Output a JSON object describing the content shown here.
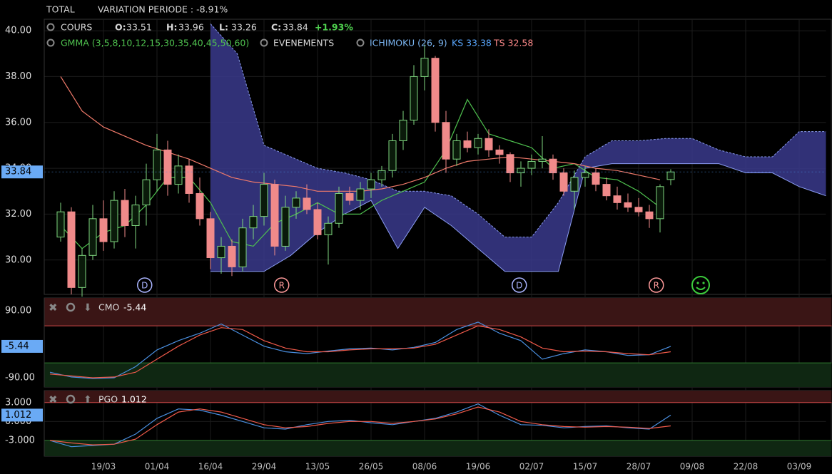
{
  "header": {
    "total": "TOTAL",
    "variation": "VARIATION PERIODE : -8.91%",
    "cours": "COURS",
    "o": "O:",
    "h": "H:",
    "l": "L:",
    "c": "C:",
    "change": "+1.93%",
    "gmma": "GMMA (3,5,8,10,12,15,30,35,40,45,50,60)",
    "evenements": "EVENEMENTS",
    "ichimoku": "ICHIMOKU (26, 9)",
    "ks": "KS 33.38",
    "ts": "TS 32.58"
  },
  "chart_data": [
    {
      "type": "candlestick",
      "up_color": "#7fd67f",
      "down_color": "#f08a8a",
      "xlim": [
        -1,
        145
      ],
      "ylim": [
        28.5,
        40.5
      ],
      "yticks": [
        {
          "value": 30,
          "label": "30.00"
        },
        {
          "value": 32,
          "label": "32.00"
        },
        {
          "value": 34,
          "label": "34.00"
        },
        {
          "value": 36,
          "label": "36.00"
        },
        {
          "value": 38,
          "label": "38.00"
        },
        {
          "value": 40,
          "label": "40.00"
        }
      ],
      "xticks": [
        {
          "value": 10,
          "label": "19/03"
        },
        {
          "value": 20,
          "label": "01/04"
        },
        {
          "value": 30,
          "label": "16/04"
        },
        {
          "value": 40,
          "label": "29/04"
        },
        {
          "value": 50,
          "label": "13/05"
        },
        {
          "value": 60,
          "label": "26/05"
        },
        {
          "value": 70,
          "label": "08/06"
        },
        {
          "value": 80,
          "label": "19/06"
        },
        {
          "value": 90,
          "label": "02/07"
        },
        {
          "value": 100,
          "label": "15/07"
        },
        {
          "value": 110,
          "label": "28/07"
        },
        {
          "value": 120,
          "label": "09/08"
        },
        {
          "value": 130,
          "label": "22/08"
        },
        {
          "value": 140,
          "label": "03/09"
        }
      ],
      "x": [
        2,
        4,
        6,
        8,
        10,
        12,
        14,
        16,
        18,
        20,
        22,
        24,
        26,
        28,
        30,
        32,
        34,
        36,
        38,
        40,
        42,
        44,
        46,
        48,
        50,
        52,
        54,
        56,
        58,
        60,
        62,
        64,
        66,
        68,
        70,
        72,
        74,
        76,
        78,
        80,
        82,
        84,
        86,
        88,
        90,
        92,
        94,
        96,
        98,
        100,
        102,
        104,
        106,
        108,
        110,
        112,
        114,
        116
      ],
      "open": [
        31.0,
        32.1,
        28.8,
        30.2,
        31.8,
        30.8,
        32.6,
        31.5,
        32.4,
        33.5,
        34.8,
        33.3,
        34.1,
        32.9,
        31.8,
        30.1,
        30.6,
        29.7,
        31.4,
        31.9,
        33.3,
        30.6,
        32.3,
        32.7,
        32.2,
        31.1,
        31.6,
        32.9,
        32.6,
        33.1,
        33.5,
        33.9,
        35.2,
        36.1,
        38.0,
        38.8,
        36.0,
        34.4,
        35.2,
        34.9,
        35.3,
        34.8,
        34.6,
        33.8,
        34.0,
        34.3,
        34.4,
        33.8,
        33.0,
        33.6,
        33.8,
        33.3,
        32.8,
        32.5,
        32.3,
        32.1,
        31.8,
        33.51
      ],
      "high": [
        32.5,
        32.3,
        30.5,
        32.4,
        32.6,
        33.0,
        33.1,
        32.8,
        34.2,
        35.5,
        35.2,
        34.6,
        34.4,
        33.6,
        32.1,
        31.0,
        30.9,
        31.8,
        32.4,
        33.8,
        33.5,
        32.8,
        33.0,
        33.3,
        32.5,
        31.9,
        33.2,
        33.2,
        33.4,
        33.8,
        34.1,
        35.5,
        36.5,
        38.5,
        39.4,
        38.9,
        36.5,
        35.5,
        35.6,
        35.5,
        35.7,
        35.0,
        34.7,
        34.3,
        34.6,
        35.4,
        34.6,
        34.0,
        33.9,
        34.1,
        34.0,
        33.6,
        33.2,
        32.9,
        32.7,
        32.4,
        33.3,
        33.96
      ],
      "low": [
        30.8,
        28.5,
        28.4,
        30.0,
        30.4,
        30.5,
        31.0,
        30.5,
        31.5,
        33.0,
        32.8,
        32.9,
        32.5,
        31.5,
        29.6,
        29.4,
        29.3,
        29.5,
        30.9,
        31.5,
        30.2,
        30.4,
        31.8,
        32.0,
        30.9,
        29.8,
        31.4,
        32.4,
        32.2,
        32.7,
        33.2,
        33.6,
        34.8,
        35.9,
        37.4,
        35.6,
        33.8,
        34.1,
        34.7,
        34.6,
        34.5,
        34.2,
        33.4,
        33.2,
        33.7,
        34.0,
        33.5,
        32.8,
        32.2,
        33.2,
        33.0,
        32.6,
        32.2,
        32.1,
        31.9,
        31.4,
        31.2,
        33.26
      ],
      "close": [
        32.1,
        28.8,
        30.2,
        31.8,
        30.8,
        32.6,
        31.5,
        32.4,
        33.5,
        34.8,
        33.3,
        34.1,
        32.9,
        31.8,
        30.1,
        30.6,
        29.7,
        31.4,
        31.9,
        33.3,
        30.6,
        32.3,
        32.7,
        32.2,
        31.1,
        31.6,
        32.9,
        32.6,
        33.1,
        33.5,
        33.9,
        35.2,
        36.1,
        38.0,
        38.8,
        36.0,
        34.4,
        35.2,
        34.9,
        35.3,
        34.8,
        34.6,
        33.8,
        34.0,
        34.3,
        34.4,
        33.8,
        33.0,
        33.6,
        33.8,
        33.3,
        32.8,
        32.5,
        32.3,
        32.1,
        31.8,
        33.2,
        33.84
      ],
      "cloud": {
        "color": "#3a3a8c",
        "edge": "#8a9cf0",
        "x": [
          30,
          35,
          40,
          45,
          50,
          55,
          60,
          65,
          70,
          75,
          80,
          85,
          90,
          95,
          100,
          105,
          110,
          115,
          120,
          125,
          130,
          135,
          140,
          145
        ],
        "span_a": [
          40.3,
          39.0,
          35.0,
          34.5,
          34.0,
          33.8,
          33.5,
          33.0,
          33.0,
          32.8,
          32.0,
          31.0,
          31.0,
          32.5,
          34.5,
          35.2,
          35.2,
          35.3,
          35.3,
          34.8,
          34.5,
          34.5,
          35.6,
          35.6
        ],
        "span_b": [
          29.5,
          29.5,
          29.5,
          30.2,
          31.2,
          32.0,
          32.6,
          30.5,
          32.3,
          31.5,
          30.5,
          29.5,
          29.5,
          29.5,
          34.0,
          34.2,
          34.2,
          34.2,
          34.2,
          34.2,
          33.8,
          33.8,
          33.2,
          32.8
        ]
      },
      "series": [
        {
          "color": "#4fc24f",
          "x": [
            2,
            6,
            10,
            14,
            18,
            22,
            26,
            30,
            34,
            38,
            42,
            46,
            50,
            54,
            58,
            62,
            66,
            70,
            74,
            78,
            82,
            86,
            90,
            94,
            98,
            102,
            106,
            110,
            114
          ],
          "values": [
            31.5,
            30.5,
            31.2,
            31.5,
            32.4,
            33.6,
            33.6,
            32.5,
            30.8,
            30.6,
            31.6,
            32.0,
            32.5,
            32.0,
            32.0,
            32.6,
            33.0,
            33.4,
            34.8,
            37.0,
            35.5,
            35.2,
            34.9,
            34.0,
            34.2,
            33.6,
            33.5,
            33.0,
            32.3
          ]
        },
        {
          "color": "#f07a6a",
          "x": [
            2,
            6,
            10,
            14,
            18,
            22,
            26,
            30,
            34,
            38,
            42,
            46,
            50,
            54,
            58,
            62,
            66,
            70,
            74,
            78,
            82,
            86,
            90,
            94,
            98,
            102,
            106,
            110,
            114
          ],
          "values": [
            38.0,
            36.5,
            35.8,
            35.4,
            35.0,
            34.7,
            34.4,
            34.0,
            33.6,
            33.4,
            33.3,
            33.2,
            33.0,
            33.0,
            33.0,
            33.1,
            33.3,
            33.6,
            34.0,
            34.3,
            34.4,
            34.5,
            34.4,
            34.3,
            34.2,
            34.0,
            33.9,
            33.7,
            33.5
          ]
        }
      ],
      "events": [
        {
          "label": "D",
          "x": 17.7,
          "color": "#aab4ff"
        },
        {
          "label": "R",
          "x": 43.3,
          "color": "#ff9a9a"
        },
        {
          "label": "D",
          "x": 87.7,
          "color": "#aab4ff"
        },
        {
          "label": "R",
          "x": 113.3,
          "color": "#ff9a9a"
        }
      ]
    },
    {
      "type": "line",
      "title": "CMO",
      "xlim": [
        -1,
        145
      ],
      "ylim": [
        -115,
        125
      ],
      "yticks": [
        {
          "value": 90,
          "label": "90.00"
        },
        {
          "value": -90,
          "label": "-90.00"
        }
      ],
      "bands": {
        "upper": 50,
        "lower": -50
      },
      "x": [
        0,
        4,
        8,
        12,
        16,
        20,
        24,
        28,
        32,
        36,
        40,
        44,
        48,
        52,
        56,
        60,
        64,
        68,
        72,
        76,
        80,
        84,
        88,
        92,
        96,
        100,
        104,
        108,
        112,
        116
      ],
      "series": [
        {
          "color": "#4a8fe0",
          "values": [
            -75,
            -88,
            -92,
            -90,
            -60,
            -15,
            10,
            30,
            55,
            25,
            -5,
            -20,
            -25,
            -18,
            -12,
            -10,
            -15,
            -8,
            5,
            40,
            60,
            30,
            10,
            -40,
            -25,
            -15,
            -20,
            -30,
            -28,
            -5.44
          ]
        },
        {
          "color": "#f05a4a",
          "values": [
            -80,
            -85,
            -90,
            -88,
            -75,
            -40,
            -5,
            25,
            45,
            40,
            10,
            -10,
            -20,
            -20,
            -15,
            -12,
            -12,
            -10,
            0,
            25,
            50,
            40,
            20,
            -10,
            -20,
            -18,
            -20,
            -25,
            -28,
            -20
          ]
        }
      ]
    },
    {
      "type": "line",
      "title": "PGO",
      "xlim": [
        -1,
        145
      ],
      "ylim": [
        -5.5,
        4.9
      ],
      "yticks": [
        {
          "value": 3,
          "label": "3.000"
        },
        {
          "value": 0,
          "label": "0.000"
        },
        {
          "value": -3,
          "label": "-3.000"
        }
      ],
      "bands": {
        "upper": 3,
        "lower": -3
      },
      "x": [
        0,
        4,
        8,
        12,
        16,
        20,
        24,
        28,
        32,
        36,
        40,
        44,
        48,
        52,
        56,
        60,
        64,
        68,
        72,
        76,
        80,
        84,
        88,
        92,
        96,
        100,
        104,
        108,
        112,
        116
      ],
      "series": [
        {
          "color": "#4a8fe0",
          "values": [
            -3,
            -4,
            -3.8,
            -3.6,
            -2,
            0.5,
            2,
            1.8,
            1,
            0,
            -1,
            -1.2,
            -0.5,
            0,
            0.2,
            -0.2,
            -0.5,
            0,
            0.5,
            1.5,
            2.8,
            1,
            -0.5,
            -0.6,
            -1,
            -0.8,
            -0.7,
            -1,
            -1.2,
            1.012
          ]
        },
        {
          "color": "#f05a4a",
          "values": [
            -3,
            -3.4,
            -3.7,
            -3.6,
            -2.8,
            -0.5,
            1.5,
            2,
            1.5,
            0.5,
            -0.5,
            -1,
            -0.8,
            -0.3,
            0,
            0,
            -0.3,
            0,
            0.4,
            1.2,
            2.3,
            1.5,
            0,
            -0.5,
            -0.8,
            -0.9,
            -0.8,
            -0.9,
            -1.1,
            -0.7
          ]
        }
      ]
    }
  ]
}
